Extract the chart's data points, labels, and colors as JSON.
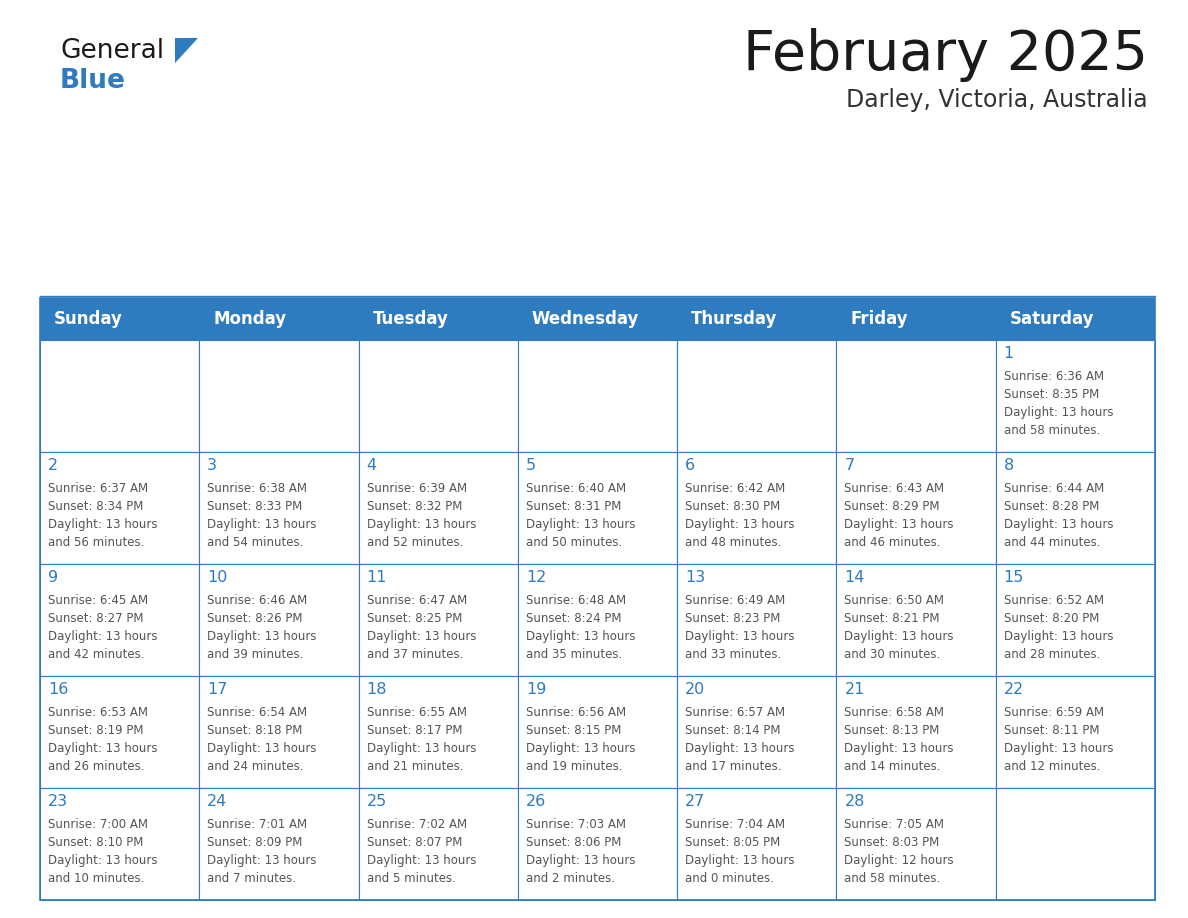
{
  "title": "February 2025",
  "subtitle": "Darley, Victoria, Australia",
  "days_of_week": [
    "Sunday",
    "Monday",
    "Tuesday",
    "Wednesday",
    "Thursday",
    "Friday",
    "Saturday"
  ],
  "header_bg": "#2E7BBF",
  "header_text_color": "#FFFFFF",
  "cell_bg": "#FFFFFF",
  "cell_border_color": "#2E7BBF",
  "day_number_color": "#2E7BBF",
  "info_text_color": "#555555",
  "title_color": "#1a1a1a",
  "subtitle_color": "#333333",
  "blue_color": "#2E7BBF",
  "calendar_data": [
    [
      null,
      null,
      null,
      null,
      null,
      null,
      {
        "day": 1,
        "sunrise": "6:36 AM",
        "sunset": "8:35 PM",
        "daylight": "13 hours\nand 58 minutes."
      }
    ],
    [
      {
        "day": 2,
        "sunrise": "6:37 AM",
        "sunset": "8:34 PM",
        "daylight": "13 hours\nand 56 minutes."
      },
      {
        "day": 3,
        "sunrise": "6:38 AM",
        "sunset": "8:33 PM",
        "daylight": "13 hours\nand 54 minutes."
      },
      {
        "day": 4,
        "sunrise": "6:39 AM",
        "sunset": "8:32 PM",
        "daylight": "13 hours\nand 52 minutes."
      },
      {
        "day": 5,
        "sunrise": "6:40 AM",
        "sunset": "8:31 PM",
        "daylight": "13 hours\nand 50 minutes."
      },
      {
        "day": 6,
        "sunrise": "6:42 AM",
        "sunset": "8:30 PM",
        "daylight": "13 hours\nand 48 minutes."
      },
      {
        "day": 7,
        "sunrise": "6:43 AM",
        "sunset": "8:29 PM",
        "daylight": "13 hours\nand 46 minutes."
      },
      {
        "day": 8,
        "sunrise": "6:44 AM",
        "sunset": "8:28 PM",
        "daylight": "13 hours\nand 44 minutes."
      }
    ],
    [
      {
        "day": 9,
        "sunrise": "6:45 AM",
        "sunset": "8:27 PM",
        "daylight": "13 hours\nand 42 minutes."
      },
      {
        "day": 10,
        "sunrise": "6:46 AM",
        "sunset": "8:26 PM",
        "daylight": "13 hours\nand 39 minutes."
      },
      {
        "day": 11,
        "sunrise": "6:47 AM",
        "sunset": "8:25 PM",
        "daylight": "13 hours\nand 37 minutes."
      },
      {
        "day": 12,
        "sunrise": "6:48 AM",
        "sunset": "8:24 PM",
        "daylight": "13 hours\nand 35 minutes."
      },
      {
        "day": 13,
        "sunrise": "6:49 AM",
        "sunset": "8:23 PM",
        "daylight": "13 hours\nand 33 minutes."
      },
      {
        "day": 14,
        "sunrise": "6:50 AM",
        "sunset": "8:21 PM",
        "daylight": "13 hours\nand 30 minutes."
      },
      {
        "day": 15,
        "sunrise": "6:52 AM",
        "sunset": "8:20 PM",
        "daylight": "13 hours\nand 28 minutes."
      }
    ],
    [
      {
        "day": 16,
        "sunrise": "6:53 AM",
        "sunset": "8:19 PM",
        "daylight": "13 hours\nand 26 minutes."
      },
      {
        "day": 17,
        "sunrise": "6:54 AM",
        "sunset": "8:18 PM",
        "daylight": "13 hours\nand 24 minutes."
      },
      {
        "day": 18,
        "sunrise": "6:55 AM",
        "sunset": "8:17 PM",
        "daylight": "13 hours\nand 21 minutes."
      },
      {
        "day": 19,
        "sunrise": "6:56 AM",
        "sunset": "8:15 PM",
        "daylight": "13 hours\nand 19 minutes."
      },
      {
        "day": 20,
        "sunrise": "6:57 AM",
        "sunset": "8:14 PM",
        "daylight": "13 hours\nand 17 minutes."
      },
      {
        "day": 21,
        "sunrise": "6:58 AM",
        "sunset": "8:13 PM",
        "daylight": "13 hours\nand 14 minutes."
      },
      {
        "day": 22,
        "sunrise": "6:59 AM",
        "sunset": "8:11 PM",
        "daylight": "13 hours\nand 12 minutes."
      }
    ],
    [
      {
        "day": 23,
        "sunrise": "7:00 AM",
        "sunset": "8:10 PM",
        "daylight": "13 hours\nand 10 minutes."
      },
      {
        "day": 24,
        "sunrise": "7:01 AM",
        "sunset": "8:09 PM",
        "daylight": "13 hours\nand 7 minutes."
      },
      {
        "day": 25,
        "sunrise": "7:02 AM",
        "sunset": "8:07 PM",
        "daylight": "13 hours\nand 5 minutes."
      },
      {
        "day": 26,
        "sunrise": "7:03 AM",
        "sunset": "8:06 PM",
        "daylight": "13 hours\nand 2 minutes."
      },
      {
        "day": 27,
        "sunrise": "7:04 AM",
        "sunset": "8:05 PM",
        "daylight": "13 hours\nand 0 minutes."
      },
      {
        "day": 28,
        "sunrise": "7:05 AM",
        "sunset": "8:03 PM",
        "daylight": "12 hours\nand 58 minutes."
      },
      null
    ]
  ]
}
